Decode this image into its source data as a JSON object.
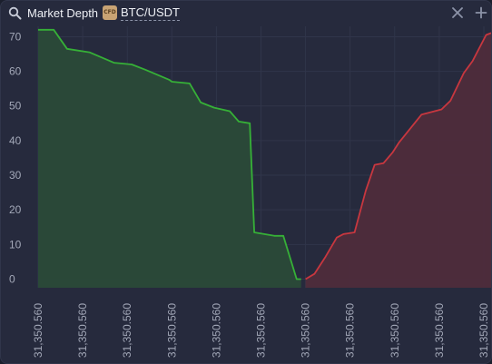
{
  "header": {
    "title": "Market Depth",
    "badge": "CFD",
    "symbol": "BTC/USDT"
  },
  "icons": {
    "search": "search-icon",
    "close": "close-icon",
    "add": "plus-icon"
  },
  "colors": {
    "background": "#262a3d",
    "bid_line": "#36b037",
    "bid_fill": "#2a4a38",
    "ask_line": "#c8373f",
    "ask_fill": "#4e2c3b",
    "text": "#eef0f5",
    "tick": "#a3a8b8"
  },
  "chart_data": {
    "type": "area",
    "ylim": [
      -2.5,
      73
    ],
    "grid": true,
    "y_ticks": [
      0,
      10,
      20,
      30,
      40,
      50,
      60,
      70
    ],
    "x_tick_labels": [
      "31,350.560",
      "31,350.560",
      "31,350.560",
      "31,350.560",
      "31,350.560",
      "31,350.560",
      "31,350.560",
      "31,350.560",
      "31,350.560",
      "31,350.560",
      "31,350.560"
    ],
    "series": [
      {
        "side": "bids",
        "x": [
          0,
          0.35,
          0.65,
          1.15,
          1.7,
          2.1,
          2.4,
          2.95,
          3.0,
          3.4,
          3.65,
          3.95,
          4.3,
          4.5,
          4.75,
          4.85,
          5.3,
          5.5,
          5.8,
          5.9
        ],
        "values": [
          72,
          72,
          66.5,
          65.5,
          62.5,
          62,
          60.5,
          57.5,
          57,
          56.5,
          51,
          49.5,
          48.5,
          45.5,
          45,
          13.5,
          12.5,
          12.5,
          0,
          0
        ]
      },
      {
        "side": "asks",
        "x": [
          6.0,
          6.2,
          6.45,
          6.7,
          6.85,
          7.1,
          7.35,
          7.55,
          7.75,
          7.95,
          8.1,
          8.6,
          8.75,
          9.05,
          9.25,
          9.55,
          9.75,
          10.05,
          10.15,
          10.5
        ],
        "values": [
          0,
          1.5,
          6.5,
          12,
          13,
          13.5,
          25.5,
          33,
          33.5,
          36.5,
          39.5,
          47.5,
          48,
          49,
          51.5,
          59.5,
          63,
          70.5,
          71,
          72
        ]
      }
    ]
  }
}
